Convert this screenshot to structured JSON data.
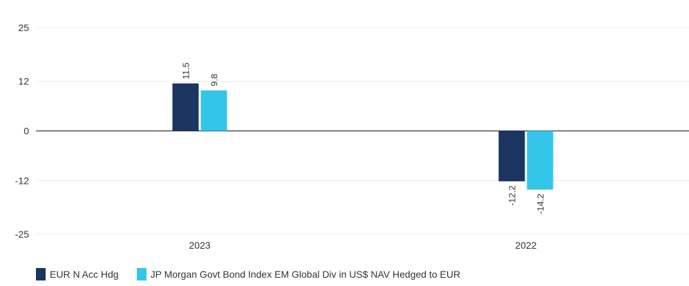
{
  "chart_data": {
    "type": "bar",
    "categories": [
      "2023",
      "2022"
    ],
    "series": [
      {
        "name": "EUR N Acc Hdg",
        "color": "#1a3560",
        "values": [
          11.5,
          -12.2
        ],
        "labels": [
          "11.5",
          "-12.2"
        ]
      },
      {
        "name": "JP Morgan Govt Bond Index EM Global Div in US$ NAV Hedged to EUR",
        "color": "#33c5ea",
        "values": [
          9.8,
          -14.2
        ],
        "labels": [
          "9.8",
          "-14.2"
        ]
      }
    ],
    "yticks": [
      "25",
      "12",
      "0",
      "-12",
      "-25"
    ],
    "ytick_values": [
      25,
      12,
      0,
      -12,
      -25
    ],
    "ylim": [
      -25,
      25
    ],
    "grid": true,
    "legend": "bottom-left"
  }
}
